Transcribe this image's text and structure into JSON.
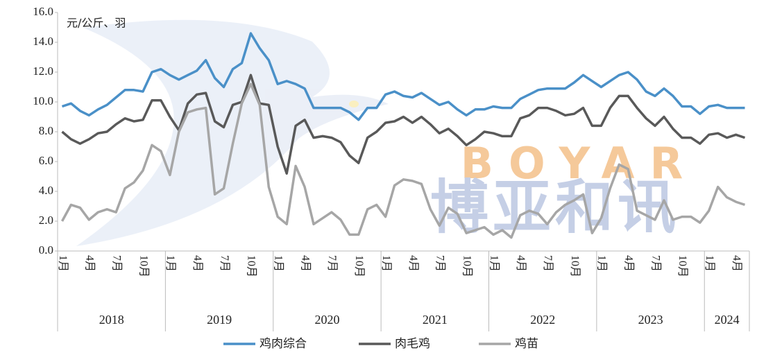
{
  "chart_data": {
    "type": "line",
    "unit_label": "元/公斤、羽",
    "watermark": [
      "BOYAR",
      "博亚和讯"
    ],
    "categories": [
      "1月",
      null,
      null,
      "4月",
      null,
      null,
      "7月",
      null,
      null,
      "10月",
      null,
      null,
      "1月",
      null,
      null,
      "4月",
      null,
      null,
      "7月",
      null,
      null,
      "10月",
      null,
      null,
      "1月",
      null,
      null,
      "4月",
      null,
      null,
      "7月",
      null,
      null,
      "10月",
      null,
      null,
      "1月",
      null,
      null,
      "4月",
      null,
      null,
      "7月",
      null,
      null,
      "10月",
      null,
      null,
      "1月",
      null,
      null,
      "4月",
      null,
      null,
      "7月",
      null,
      null,
      "10月",
      null,
      null,
      "1月",
      null,
      null,
      "4月",
      null,
      null,
      "7月",
      null,
      null,
      "10月",
      null,
      null,
      "1月",
      null,
      null,
      "4月",
      null
    ],
    "groups": [
      {
        "label": "2018",
        "size": 12
      },
      {
        "label": "2019",
        "size": 12
      },
      {
        "label": "2020",
        "size": 12
      },
      {
        "label": "2021",
        "size": 12
      },
      {
        "label": "2022",
        "size": 12
      },
      {
        "label": "2023",
        "size": 12
      },
      {
        "label": "2024",
        "size": 5
      }
    ],
    "ylim": [
      0,
      16
    ],
    "yticks": [
      {
        "value": 0,
        "label": "0.0"
      },
      {
        "value": 2,
        "label": "2.0"
      },
      {
        "value": 4,
        "label": "4.0"
      },
      {
        "value": 6,
        "label": "6.0"
      },
      {
        "value": 8,
        "label": "8.0"
      },
      {
        "value": 10,
        "label": "10.0"
      },
      {
        "value": 12,
        "label": "12.0"
      },
      {
        "value": 14,
        "label": "14.0"
      },
      {
        "value": 16,
        "label": "16.0"
      }
    ],
    "legend": "bottom",
    "series": [
      {
        "name": "鸡肉综合",
        "color": "#4a90c8",
        "values": [
          9.7,
          9.9,
          9.4,
          9.1,
          9.5,
          9.8,
          10.3,
          10.8,
          10.8,
          10.7,
          12.0,
          12.2,
          11.8,
          11.5,
          11.8,
          12.1,
          12.8,
          11.6,
          11.0,
          12.2,
          12.6,
          14.6,
          13.6,
          12.8,
          11.2,
          11.4,
          11.2,
          10.9,
          9.6,
          9.6,
          9.6,
          9.6,
          9.3,
          8.8,
          9.6,
          9.6,
          10.5,
          10.7,
          10.4,
          10.3,
          10.6,
          10.2,
          9.8,
          10.0,
          9.5,
          9.1,
          9.5,
          9.5,
          9.7,
          9.6,
          9.6,
          10.2,
          10.5,
          10.8,
          10.9,
          10.9,
          10.9,
          11.3,
          11.8,
          11.4,
          11.0,
          11.4,
          11.8,
          12.0,
          11.5,
          10.7,
          10.4,
          10.9,
          10.4,
          9.7,
          9.7,
          9.2,
          9.7,
          9.8,
          9.6,
          9.6,
          9.6
        ]
      },
      {
        "name": "肉毛鸡",
        "color": "#595959",
        "values": [
          8.0,
          7.5,
          7.2,
          7.5,
          7.9,
          8.0,
          8.5,
          8.9,
          8.7,
          8.8,
          10.1,
          10.1,
          9.0,
          8.1,
          9.9,
          10.5,
          10.6,
          8.7,
          8.3,
          9.8,
          10.0,
          11.8,
          9.9,
          9.8,
          7.0,
          5.2,
          8.4,
          8.8,
          7.6,
          7.7,
          7.6,
          7.3,
          6.4,
          5.9,
          7.6,
          8.0,
          8.6,
          8.7,
          9.0,
          8.6,
          9.0,
          8.5,
          7.9,
          8.2,
          7.7,
          7.1,
          7.5,
          8.0,
          7.9,
          7.7,
          7.7,
          8.9,
          9.1,
          9.6,
          9.6,
          9.4,
          9.1,
          9.2,
          9.6,
          8.4,
          8.4,
          9.6,
          10.4,
          10.4,
          9.6,
          8.9,
          8.4,
          9.0,
          8.2,
          7.6,
          7.6,
          7.2,
          7.8,
          7.9,
          7.6,
          7.8,
          7.6
        ]
      },
      {
        "name": "鸡苗",
        "color": "#a6a6a6",
        "values": [
          2.0,
          3.1,
          2.9,
          2.1,
          2.6,
          2.8,
          2.6,
          4.2,
          4.6,
          5.4,
          7.1,
          6.7,
          5.1,
          8.0,
          9.3,
          9.5,
          9.6,
          3.8,
          4.2,
          7.2,
          9.9,
          11.2,
          9.8,
          4.3,
          2.3,
          1.8,
          5.7,
          4.3,
          1.8,
          2.2,
          2.6,
          2.1,
          1.1,
          1.1,
          2.8,
          3.1,
          2.3,
          4.4,
          4.8,
          4.7,
          4.5,
          2.8,
          1.7,
          2.9,
          2.5,
          1.2,
          1.4,
          1.6,
          1.1,
          1.4,
          0.9,
          2.4,
          2.7,
          2.5,
          1.8,
          2.6,
          3.1,
          3.4,
          3.8,
          1.2,
          2.2,
          4.2,
          5.8,
          5.5,
          2.7,
          2.4,
          2.1,
          3.4,
          2.1,
          2.3,
          2.3,
          1.9,
          2.7,
          4.3,
          3.6,
          3.3,
          3.1
        ]
      }
    ]
  }
}
